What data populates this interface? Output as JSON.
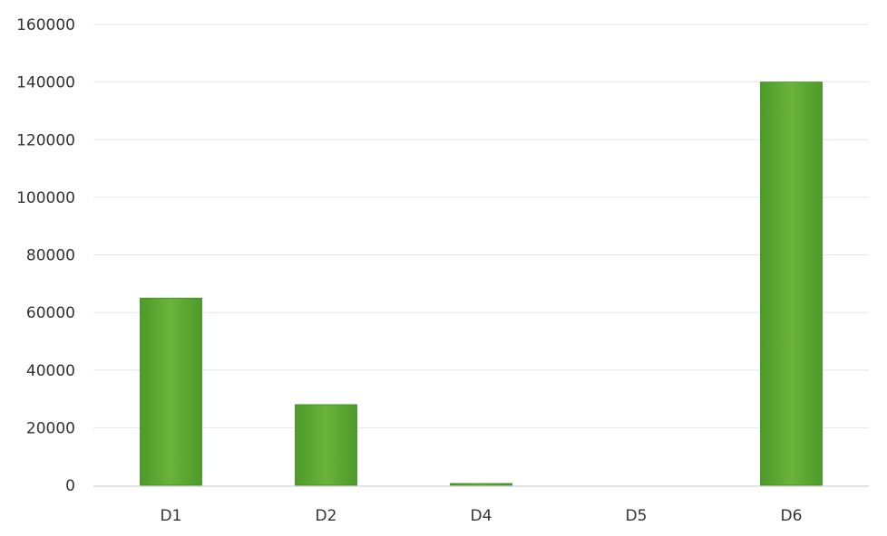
{
  "chart_data": {
    "type": "bar",
    "title": "",
    "xlabel": "",
    "ylabel": "",
    "categories": [
      "D1",
      "D2",
      "D4",
      "D5",
      "D6"
    ],
    "values": [
      65000,
      28000,
      500,
      0,
      140000
    ],
    "ylim": [
      0,
      160000
    ],
    "yticks": [
      0,
      20000,
      40000,
      60000,
      80000,
      100000,
      120000,
      140000,
      160000
    ],
    "ytick_labels": [
      "0",
      "20000",
      "40000",
      "60000",
      "80000",
      "100000",
      "120000",
      "140000",
      "160000"
    ],
    "grid": true,
    "legend": "none",
    "bar_color": "#4c9a2a",
    "bar_highlight": "#6bb33a"
  }
}
